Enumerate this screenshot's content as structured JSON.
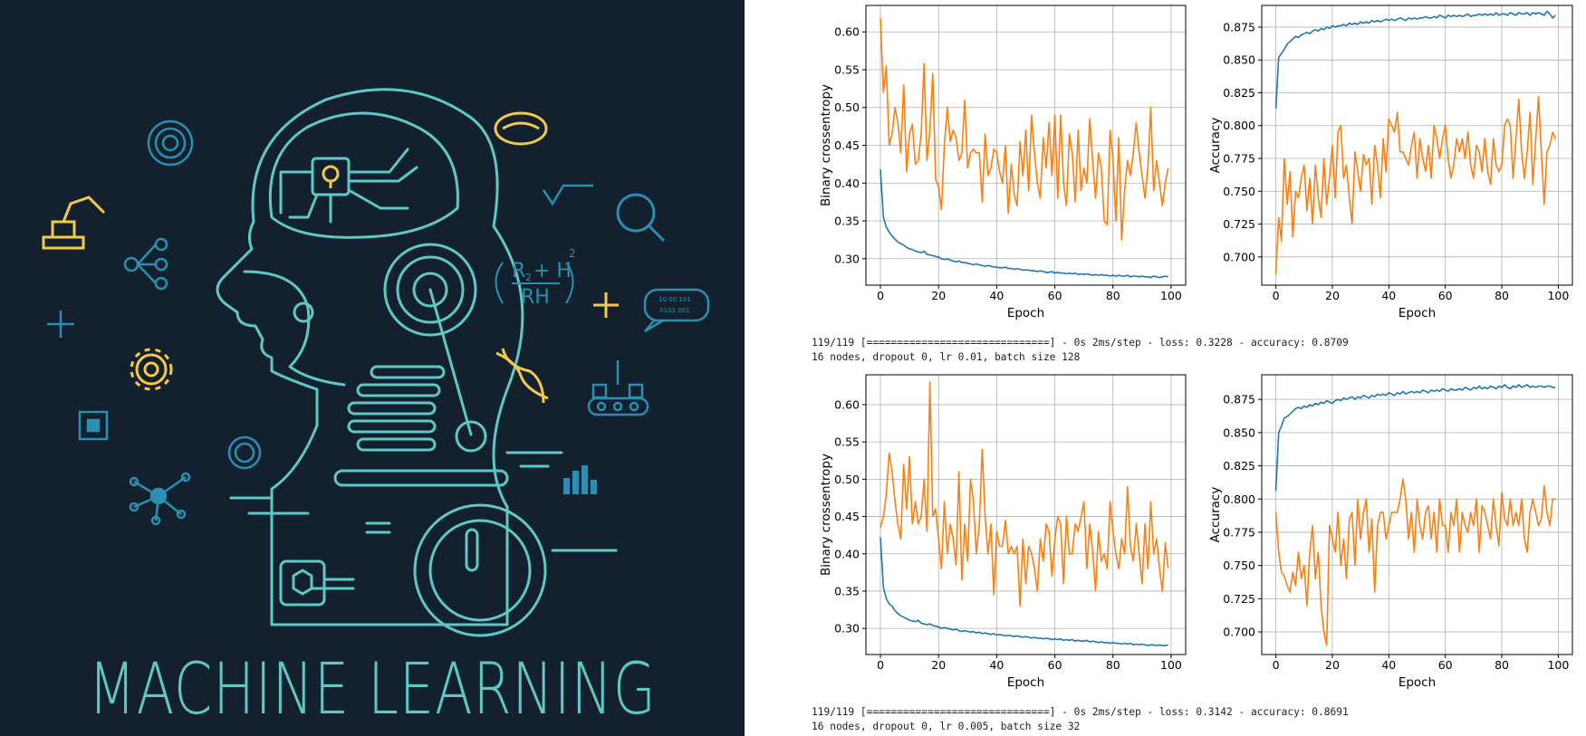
{
  "poster": {
    "title": "MACHINE LEARNING",
    "formula_top": "R",
    "formula_sub": "2",
    "formula_plus": "+ H",
    "formula_bottom": "RH",
    "formula_exp": "2",
    "chat_line1": "10 00 101",
    "chat_line2": "0101 001",
    "colors": {
      "background": "#12212d",
      "teal": "#5fc8c6",
      "yellow": "#f2c94c",
      "blue": "#2a8fb0"
    },
    "icons": [
      "fingerprint-icon",
      "robot-arm-icon",
      "network-icon",
      "plus-icon",
      "gear-icon",
      "chip-icon",
      "molecule-icon",
      "brain-icon",
      "sqrt-icon",
      "search-icon",
      "chat-icon",
      "dna-icon",
      "conveyor-icon",
      "bar-chart-icon",
      "lightbulb-icon"
    ]
  },
  "runs": [
    {
      "log": "119/119 [==============================] - 0s 2ms/step - loss: 0.3228 - accuracy: 0.8709",
      "params": "16 nodes, dropout 0, lr 0.01, batch size 128"
    },
    {
      "log": "119/119 [==============================] - 0s 2ms/step - loss: 0.3142 - accuracy: 0.8691",
      "params": "16 nodes, dropout 0, lr 0.005, batch size 32"
    }
  ],
  "chart_data": [
    {
      "type": "line",
      "xlabel": "Epoch",
      "ylabel": "Binary crossentropy",
      "xlim": [
        -5,
        105
      ],
      "ylim": [
        0.265,
        0.635
      ],
      "xticks": [
        0,
        20,
        40,
        60,
        80,
        100
      ],
      "yticks": [
        0.3,
        0.35,
        0.4,
        0.45,
        0.5,
        0.55,
        0.6
      ],
      "grid": true,
      "series": [
        {
          "color": "#1f77b4",
          "values": [
            0.418,
            0.355,
            0.342,
            0.335,
            0.33,
            0.326,
            0.322,
            0.32,
            0.318,
            0.315,
            0.313,
            0.312,
            0.31,
            0.309,
            0.308,
            0.31,
            0.306,
            0.305,
            0.304,
            0.303,
            0.302,
            0.3,
            0.299,
            0.3,
            0.298,
            0.297,
            0.296,
            0.297,
            0.295,
            0.295,
            0.294,
            0.293,
            0.292,
            0.293,
            0.292,
            0.291,
            0.29,
            0.291,
            0.29,
            0.289,
            0.289,
            0.288,
            0.288,
            0.289,
            0.287,
            0.287,
            0.286,
            0.287,
            0.286,
            0.285,
            0.285,
            0.285,
            0.284,
            0.284,
            0.283,
            0.284,
            0.283,
            0.282,
            0.282,
            0.283,
            0.281,
            0.282,
            0.281,
            0.281,
            0.28,
            0.281,
            0.28,
            0.281,
            0.279,
            0.28,
            0.279,
            0.28,
            0.279,
            0.278,
            0.279,
            0.278,
            0.279,
            0.278,
            0.278,
            0.277,
            0.278,
            0.277,
            0.278,
            0.277,
            0.277,
            0.278,
            0.276,
            0.277,
            0.277,
            0.276,
            0.277,
            0.276,
            0.276,
            0.275,
            0.277,
            0.276,
            0.275,
            0.276,
            0.277,
            0.276
          ]
        },
        {
          "color": "#ff7f0e",
          "values": [
            0.618,
            0.52,
            0.555,
            0.45,
            0.465,
            0.5,
            0.48,
            0.44,
            0.53,
            0.415,
            0.465,
            0.478,
            0.425,
            0.43,
            0.465,
            0.558,
            0.43,
            0.47,
            0.545,
            0.405,
            0.395,
            0.365,
            0.45,
            0.5,
            0.455,
            0.47,
            0.46,
            0.43,
            0.44,
            0.51,
            0.42,
            0.44,
            0.445,
            0.44,
            0.44,
            0.375,
            0.465,
            0.41,
            0.42,
            0.445,
            0.44,
            0.415,
            0.4,
            0.45,
            0.36,
            0.425,
            0.385,
            0.37,
            0.455,
            0.41,
            0.47,
            0.39,
            0.49,
            0.44,
            0.4,
            0.38,
            0.46,
            0.42,
            0.48,
            0.41,
            0.49,
            0.38,
            0.49,
            0.4,
            0.37,
            0.465,
            0.44,
            0.375,
            0.47,
            0.39,
            0.42,
            0.4,
            0.485,
            0.43,
            0.38,
            0.44,
            0.42,
            0.35,
            0.345,
            0.47,
            0.43,
            0.35,
            0.46,
            0.325,
            0.39,
            0.43,
            0.41,
            0.44,
            0.48,
            0.44,
            0.41,
            0.38,
            0.42,
            0.5,
            0.39,
            0.43,
            0.4,
            0.37,
            0.4,
            0.42
          ]
        }
      ]
    },
    {
      "type": "line",
      "xlabel": "Epoch",
      "ylabel": "Accuracy",
      "xlim": [
        -5,
        105
      ],
      "ylim": [
        0.6785,
        0.8915
      ],
      "xticks": [
        0,
        20,
        40,
        60,
        80,
        100
      ],
      "yticks": [
        0.7,
        0.725,
        0.75,
        0.775,
        0.8,
        0.825,
        0.85,
        0.875
      ],
      "grid": true,
      "series": [
        {
          "color": "#1f77b4",
          "values": [
            0.813,
            0.852,
            0.855,
            0.858,
            0.862,
            0.864,
            0.866,
            0.868,
            0.867,
            0.869,
            0.87,
            0.871,
            0.87,
            0.872,
            0.873,
            0.872,
            0.874,
            0.873,
            0.875,
            0.874,
            0.876,
            0.875,
            0.876,
            0.876,
            0.877,
            0.876,
            0.878,
            0.877,
            0.878,
            0.877,
            0.879,
            0.878,
            0.879,
            0.878,
            0.88,
            0.879,
            0.88,
            0.879,
            0.88,
            0.881,
            0.88,
            0.881,
            0.88,
            0.881,
            0.882,
            0.881,
            0.88,
            0.882,
            0.881,
            0.882,
            0.881,
            0.882,
            0.882,
            0.883,
            0.882,
            0.882,
            0.883,
            0.882,
            0.884,
            0.883,
            0.882,
            0.884,
            0.883,
            0.884,
            0.883,
            0.884,
            0.883,
            0.884,
            0.885,
            0.883,
            0.884,
            0.884,
            0.885,
            0.884,
            0.885,
            0.884,
            0.885,
            0.884,
            0.886,
            0.884,
            0.885,
            0.885,
            0.884,
            0.886,
            0.885,
            0.884,
            0.886,
            0.885,
            0.885,
            0.886,
            0.884,
            0.886,
            0.885,
            0.886,
            0.885,
            0.884,
            0.887,
            0.885,
            0.882,
            0.884
          ]
        },
        {
          "color": "#ff7f0e",
          "values": [
            0.687,
            0.73,
            0.712,
            0.775,
            0.74,
            0.765,
            0.715,
            0.75,
            0.745,
            0.76,
            0.77,
            0.735,
            0.76,
            0.725,
            0.77,
            0.745,
            0.73,
            0.775,
            0.74,
            0.76,
            0.785,
            0.745,
            0.795,
            0.8,
            0.76,
            0.77,
            0.745,
            0.725,
            0.78,
            0.765,
            0.75,
            0.778,
            0.77,
            0.775,
            0.74,
            0.785,
            0.77,
            0.745,
            0.79,
            0.765,
            0.805,
            0.8,
            0.795,
            0.81,
            0.78,
            0.78,
            0.775,
            0.77,
            0.785,
            0.795,
            0.76,
            0.79,
            0.775,
            0.765,
            0.785,
            0.76,
            0.8,
            0.79,
            0.775,
            0.79,
            0.8,
            0.775,
            0.76,
            0.77,
            0.79,
            0.78,
            0.79,
            0.775,
            0.795,
            0.77,
            0.76,
            0.785,
            0.78,
            0.765,
            0.79,
            0.765,
            0.755,
            0.79,
            0.77,
            0.765,
            0.77,
            0.8,
            0.805,
            0.8,
            0.76,
            0.79,
            0.82,
            0.78,
            0.76,
            0.78,
            0.81,
            0.755,
            0.79,
            0.822,
            0.78,
            0.74,
            0.78,
            0.785,
            0.795,
            0.79
          ]
        }
      ]
    },
    {
      "type": "line",
      "xlabel": "Epoch",
      "ylabel": "Binary crossentropy",
      "xlim": [
        -5,
        105
      ],
      "ylim": [
        0.265,
        0.64
      ],
      "xticks": [
        0,
        20,
        40,
        60,
        80,
        100
      ],
      "yticks": [
        0.3,
        0.35,
        0.4,
        0.45,
        0.5,
        0.55,
        0.6
      ],
      "grid": true,
      "series": [
        {
          "color": "#1f77b4",
          "values": [
            0.422,
            0.355,
            0.34,
            0.333,
            0.33,
            0.324,
            0.32,
            0.317,
            0.315,
            0.313,
            0.311,
            0.31,
            0.309,
            0.311,
            0.307,
            0.306,
            0.305,
            0.306,
            0.304,
            0.303,
            0.302,
            0.3,
            0.301,
            0.3,
            0.299,
            0.298,
            0.299,
            0.297,
            0.296,
            0.297,
            0.296,
            0.295,
            0.296,
            0.294,
            0.295,
            0.293,
            0.294,
            0.293,
            0.292,
            0.293,
            0.291,
            0.292,
            0.291,
            0.29,
            0.291,
            0.29,
            0.289,
            0.29,
            0.289,
            0.288,
            0.289,
            0.288,
            0.287,
            0.288,
            0.287,
            0.287,
            0.286,
            0.287,
            0.286,
            0.285,
            0.286,
            0.285,
            0.286,
            0.284,
            0.285,
            0.284,
            0.285,
            0.283,
            0.284,
            0.283,
            0.283,
            0.284,
            0.282,
            0.283,
            0.282,
            0.281,
            0.282,
            0.281,
            0.281,
            0.28,
            0.281,
            0.28,
            0.28,
            0.279,
            0.28,
            0.279,
            0.28,
            0.278,
            0.279,
            0.278,
            0.279,
            0.278,
            0.277,
            0.278,
            0.278,
            0.277,
            0.278,
            0.277,
            0.277,
            0.278
          ]
        },
        {
          "color": "#ff7f0e",
          "values": [
            0.435,
            0.45,
            0.48,
            0.535,
            0.51,
            0.47,
            0.44,
            0.42,
            0.52,
            0.46,
            0.53,
            0.44,
            0.47,
            0.44,
            0.45,
            0.5,
            0.43,
            0.63,
            0.45,
            0.46,
            0.42,
            0.38,
            0.47,
            0.4,
            0.44,
            0.42,
            0.385,
            0.51,
            0.365,
            0.44,
            0.39,
            0.5,
            0.47,
            0.4,
            0.44,
            0.54,
            0.45,
            0.4,
            0.44,
            0.345,
            0.43,
            0.41,
            0.41,
            0.445,
            0.4,
            0.41,
            0.4,
            0.41,
            0.33,
            0.42,
            0.36,
            0.41,
            0.4,
            0.38,
            0.35,
            0.42,
            0.39,
            0.44,
            0.43,
            0.37,
            0.42,
            0.45,
            0.44,
            0.36,
            0.45,
            0.4,
            0.4,
            0.44,
            0.43,
            0.45,
            0.47,
            0.38,
            0.44,
            0.405,
            0.35,
            0.43,
            0.39,
            0.4,
            0.38,
            0.47,
            0.43,
            0.4,
            0.38,
            0.42,
            0.4,
            0.49,
            0.41,
            0.39,
            0.44,
            0.4,
            0.36,
            0.44,
            0.38,
            0.47,
            0.4,
            0.42,
            0.38,
            0.35,
            0.415,
            0.38
          ]
        }
      ]
    },
    {
      "type": "line",
      "xlabel": "Epoch",
      "ylabel": "Accuracy",
      "xlim": [
        -5,
        105
      ],
      "ylim": [
        0.683,
        0.8935
      ],
      "xticks": [
        0,
        20,
        40,
        60,
        80,
        100
      ],
      "yticks": [
        0.7,
        0.725,
        0.75,
        0.775,
        0.8,
        0.825,
        0.85,
        0.875
      ],
      "grid": true,
      "series": [
        {
          "color": "#1f77b4",
          "values": [
            0.806,
            0.85,
            0.855,
            0.861,
            0.862,
            0.864,
            0.866,
            0.868,
            0.869,
            0.868,
            0.87,
            0.869,
            0.871,
            0.87,
            0.872,
            0.871,
            0.873,
            0.872,
            0.874,
            0.873,
            0.872,
            0.874,
            0.875,
            0.874,
            0.876,
            0.875,
            0.876,
            0.877,
            0.875,
            0.877,
            0.876,
            0.878,
            0.877,
            0.876,
            0.878,
            0.877,
            0.879,
            0.878,
            0.879,
            0.878,
            0.88,
            0.879,
            0.878,
            0.88,
            0.879,
            0.881,
            0.879,
            0.88,
            0.881,
            0.88,
            0.881,
            0.88,
            0.882,
            0.881,
            0.88,
            0.882,
            0.881,
            0.882,
            0.881,
            0.883,
            0.882,
            0.881,
            0.883,
            0.882,
            0.882,
            0.883,
            0.882,
            0.884,
            0.883,
            0.882,
            0.884,
            0.883,
            0.885,
            0.883,
            0.884,
            0.883,
            0.885,
            0.884,
            0.883,
            0.885,
            0.884,
            0.886,
            0.884,
            0.883,
            0.885,
            0.884,
            0.886,
            0.884,
            0.885,
            0.886,
            0.884,
            0.885,
            0.884,
            0.885,
            0.885,
            0.884,
            0.885,
            0.885,
            0.884,
            0.884
          ]
        },
        {
          "color": "#ff7f0e",
          "values": [
            0.79,
            0.76,
            0.745,
            0.742,
            0.735,
            0.73,
            0.745,
            0.735,
            0.76,
            0.74,
            0.75,
            0.72,
            0.76,
            0.78,
            0.74,
            0.76,
            0.72,
            0.7,
            0.69,
            0.78,
            0.77,
            0.76,
            0.79,
            0.75,
            0.77,
            0.74,
            0.785,
            0.79,
            0.75,
            0.8,
            0.77,
            0.79,
            0.8,
            0.76,
            0.785,
            0.73,
            0.78,
            0.79,
            0.79,
            0.77,
            0.78,
            0.79,
            0.79,
            0.79,
            0.8,
            0.815,
            0.8,
            0.77,
            0.79,
            0.76,
            0.8,
            0.78,
            0.77,
            0.79,
            0.795,
            0.77,
            0.79,
            0.76,
            0.8,
            0.78,
            0.78,
            0.76,
            0.79,
            0.78,
            0.8,
            0.76,
            0.79,
            0.78,
            0.775,
            0.79,
            0.78,
            0.8,
            0.76,
            0.795,
            0.79,
            0.78,
            0.77,
            0.8,
            0.78,
            0.765,
            0.805,
            0.785,
            0.78,
            0.8,
            0.78,
            0.79,
            0.78,
            0.8,
            0.77,
            0.76,
            0.79,
            0.8,
            0.79,
            0.78,
            0.785,
            0.81,
            0.79,
            0.78,
            0.8,
            0.8
          ]
        }
      ]
    }
  ]
}
